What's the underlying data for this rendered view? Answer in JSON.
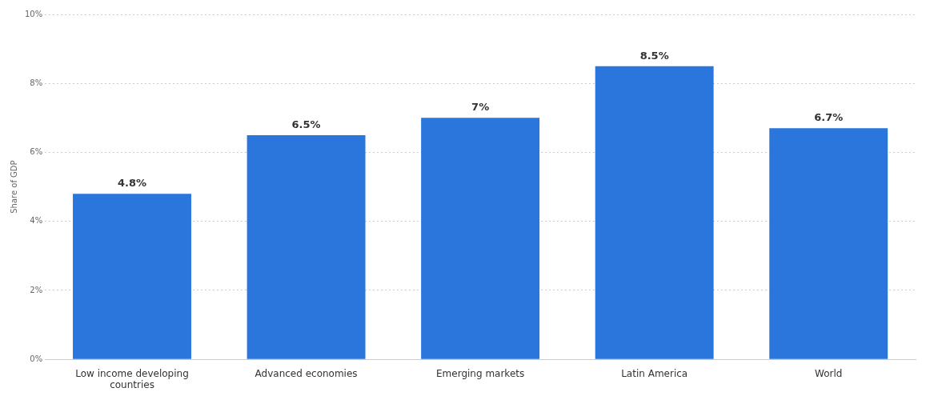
{
  "chart_data": {
    "type": "bar",
    "ylabel": "Share of GDP",
    "categories": [
      "Low income developing countries",
      "Advanced economies",
      "Emerging markets",
      "Latin America",
      "World"
    ],
    "values": [
      4.8,
      6.5,
      7,
      8.5,
      6.7
    ],
    "value_labels": [
      "4.8%",
      "6.5%",
      "7%",
      "8.5%",
      "6.7%"
    ],
    "color": "#2a76dd",
    "ylim": [
      0,
      10
    ],
    "yticks": [
      {
        "value": 0,
        "label": "0%"
      },
      {
        "value": 2,
        "label": "2%"
      },
      {
        "value": 4,
        "label": "4%"
      },
      {
        "value": 6,
        "label": "6%"
      },
      {
        "value": 8,
        "label": "8%"
      },
      {
        "value": 10,
        "label": "10%"
      }
    ],
    "grid": "y",
    "legend": false
  }
}
